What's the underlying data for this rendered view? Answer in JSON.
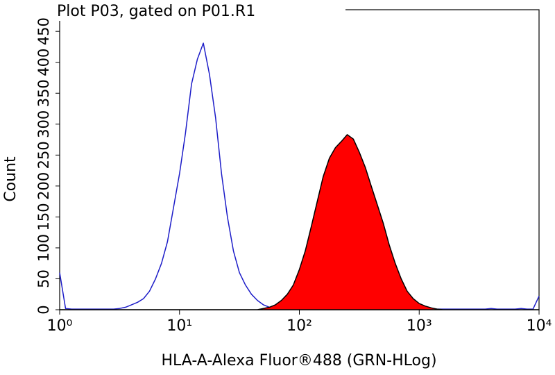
{
  "chart_data": {
    "type": "histogram-overlay",
    "title": "Plot P03, gated on P01.R1",
    "xlabel": "HLA-A-Alexa Fluor®488 (GRN-HLog)",
    "ylabel": "Count",
    "xscale": "log",
    "xlim": [
      1,
      10000
    ],
    "xticks": [
      {
        "value": 1,
        "label": "10⁰"
      },
      {
        "value": 10,
        "label": "10¹"
      },
      {
        "value": 100,
        "label": "10²"
      },
      {
        "value": 1000,
        "label": "10³"
      },
      {
        "value": 10000,
        "label": "10⁴"
      }
    ],
    "ylim": [
      0,
      485
    ],
    "yticks": [
      0,
      50,
      100,
      150,
      200,
      250,
      300,
      350,
      400,
      450
    ],
    "x": [
      1,
      1.12,
      1.26,
      1.41,
      1.58,
      1.78,
      2,
      2.24,
      2.51,
      2.82,
      3.16,
      3.55,
      3.98,
      4.47,
      5.01,
      5.62,
      6.31,
      7.08,
      7.94,
      8.91,
      10,
      11.2,
      12.6,
      14.1,
      15.8,
      17.8,
      20,
      22.4,
      25.1,
      28.2,
      31.6,
      35.5,
      39.8,
      44.7,
      50.1,
      56.2,
      63.1,
      70.8,
      79.4,
      89.1,
      100,
      112,
      126,
      141,
      158,
      178,
      200,
      224,
      251,
      282,
      316,
      355,
      398,
      447,
      501,
      562,
      631,
      708,
      794,
      891,
      1000,
      1120,
      1260,
      1410,
      1580,
      1780,
      2000,
      2240,
      2510,
      2820,
      3160,
      3550,
      3980,
      4470,
      5010,
      5620,
      6310,
      7080,
      7940,
      8910,
      10000
    ],
    "series": [
      {
        "color": "#1c1cc8",
        "fill": false,
        "values": [
          60,
          2,
          1,
          1,
          1,
          1,
          1,
          1,
          1,
          1,
          2,
          4,
          8,
          12,
          18,
          30,
          50,
          75,
          110,
          165,
          220,
          285,
          365,
          405,
          431,
          380,
          310,
          220,
          150,
          95,
          60,
          40,
          25,
          15,
          8,
          4,
          2,
          2,
          1,
          1,
          2,
          1,
          1,
          2,
          1,
          1,
          1,
          1,
          1,
          1,
          1,
          1,
          1,
          1,
          1,
          1,
          1,
          1,
          1,
          1,
          2,
          1,
          1,
          1,
          1,
          1,
          1,
          1,
          1,
          1,
          1,
          1,
          2,
          1,
          1,
          1,
          1,
          2,
          1,
          1,
          22
        ]
      },
      {
        "color": "#ff0000",
        "edgecolor": "#000000",
        "fill": true,
        "values": [
          0,
          0,
          0,
          0,
          0,
          0,
          0,
          0,
          0,
          0,
          0,
          0,
          0,
          0,
          0,
          0,
          0,
          0,
          0,
          0,
          0,
          0,
          0,
          0,
          0,
          0,
          0,
          0,
          0,
          0,
          0,
          0,
          0,
          0,
          2,
          4,
          8,
          15,
          25,
          40,
          65,
          95,
          135,
          175,
          215,
          245,
          262,
          272,
          283,
          276,
          255,
          230,
          200,
          170,
          140,
          105,
          75,
          50,
          30,
          18,
          10,
          6,
          3,
          1,
          0,
          0,
          0,
          0,
          0,
          0,
          0,
          0,
          0,
          0,
          0,
          0,
          0,
          0,
          0,
          0,
          0
        ]
      }
    ]
  }
}
